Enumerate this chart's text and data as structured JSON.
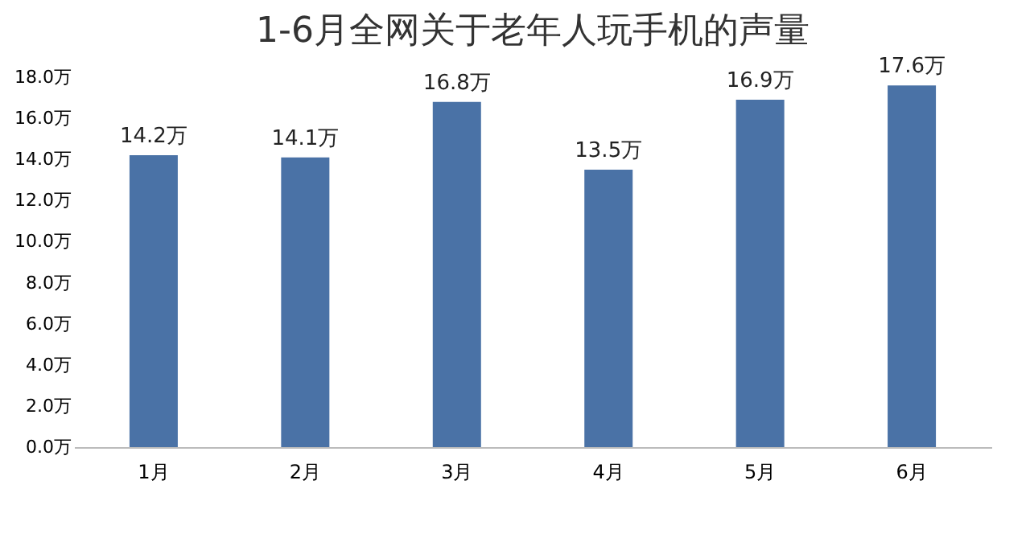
{
  "chart_data": {
    "type": "bar",
    "title": "1-6月全网关于老年人玩手机的声量",
    "categories": [
      "1月",
      "2月",
      "3月",
      "4月",
      "5月",
      "6月"
    ],
    "values": [
      14.2,
      14.1,
      16.8,
      13.5,
      16.9,
      17.6
    ],
    "value_labels": [
      "14.2万",
      "14.1万",
      "16.8万",
      "13.5万",
      "16.9万",
      "17.6万"
    ],
    "color": "#4a72a6",
    "ylim": [
      0,
      18
    ],
    "yticks": [
      {
        "value": 0,
        "label": "0.0万"
      },
      {
        "value": 2,
        "label": "2.0万"
      },
      {
        "value": 4,
        "label": "4.0万"
      },
      {
        "value": 6,
        "label": "6.0万"
      },
      {
        "value": 8,
        "label": "8.0万"
      },
      {
        "value": 10,
        "label": "10.0万"
      },
      {
        "value": 12,
        "label": "12.0万"
      },
      {
        "value": 14,
        "label": "14.0万"
      },
      {
        "value": 16,
        "label": "16.0万"
      },
      {
        "value": 18,
        "label": "18.0万"
      }
    ],
    "grid": false
  }
}
